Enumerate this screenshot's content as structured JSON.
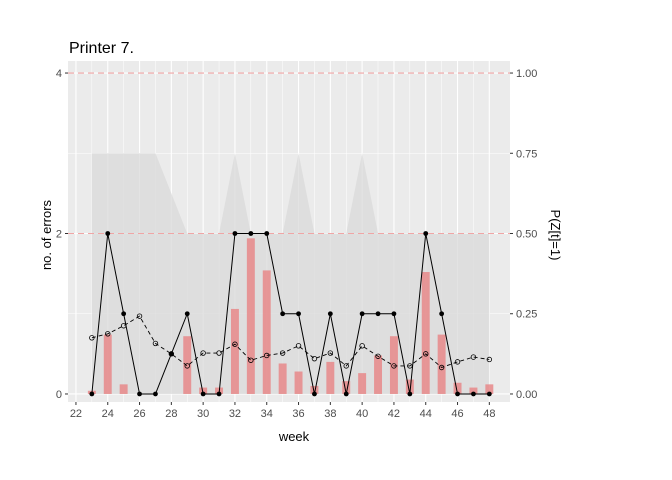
{
  "chart_data": {
    "type": "line",
    "title": "Printer 7.",
    "xlabel": "week",
    "ylabel": "no. of errors",
    "y2label": "P(Z[t]=1)",
    "x_ticks": [
      22,
      24,
      26,
      28,
      30,
      32,
      34,
      36,
      38,
      40,
      42,
      44,
      46,
      48
    ],
    "y_ticks": [
      0,
      2,
      4
    ],
    "y2_ticks": [
      "0.00",
      "0.25",
      "0.50",
      "0.75",
      "1.00"
    ],
    "xlim": [
      21.5,
      49.3
    ],
    "ylim": [
      -0.1,
      4.15
    ],
    "y2_scale": 4,
    "reference_lines": [
      2,
      4
    ],
    "grid": true,
    "weeks": [
      23,
      24,
      25,
      26,
      27,
      28,
      29,
      30,
      31,
      32,
      33,
      34,
      35,
      36,
      37,
      38,
      39,
      40,
      41,
      42,
      43,
      44,
      45,
      46,
      47,
      48
    ],
    "series": [
      {
        "kind": "errors",
        "style": "solid line, filled points",
        "values": [
          0,
          2,
          1,
          0,
          0,
          0.5,
          1,
          0,
          0,
          2,
          2,
          2,
          1,
          1,
          0,
          1,
          0,
          1,
          1,
          1,
          0,
          2,
          1,
          0,
          0,
          0
        ]
      },
      {
        "kind": "expected",
        "style": "dashed line, open points",
        "values": [
          0.7,
          0.75,
          0.85,
          0.97,
          0.63,
          0.5,
          0.35,
          0.51,
          0.51,
          0.62,
          0.42,
          0.48,
          0.51,
          0.6,
          0.44,
          0.51,
          0.35,
          0.6,
          0.47,
          0.35,
          0.35,
          0.5,
          0.33,
          0.4,
          0.46,
          0.43
        ]
      },
      {
        "kind": "probability_bars",
        "style": "red bars",
        "values": [
          0.01,
          0.185,
          0.03,
          0,
          0,
          0,
          0.18,
          0.02,
          0.02,
          0.265,
          0.485,
          0.385,
          0.095,
          0.07,
          0.025,
          0.1,
          0.04,
          0.065,
          0.12,
          0.18,
          0.045,
          0.38,
          0.185,
          0.035,
          0.02,
          0.03
        ]
      },
      {
        "kind": "probability_area",
        "style": "grey area",
        "values": [
          3,
          3,
          3,
          3,
          3,
          2.5,
          2,
          2,
          2,
          3,
          2,
          2,
          2,
          3,
          2,
          2,
          2,
          3,
          2,
          2,
          2,
          2,
          2,
          2,
          2,
          2
        ]
      }
    ],
    "colors": {
      "panel": "#ebebeb",
      "grid": "#ffffff",
      "area": "#d9d9d9",
      "bars": "#e8888a",
      "reference": "#f0a5a5",
      "line": "#000000"
    }
  }
}
